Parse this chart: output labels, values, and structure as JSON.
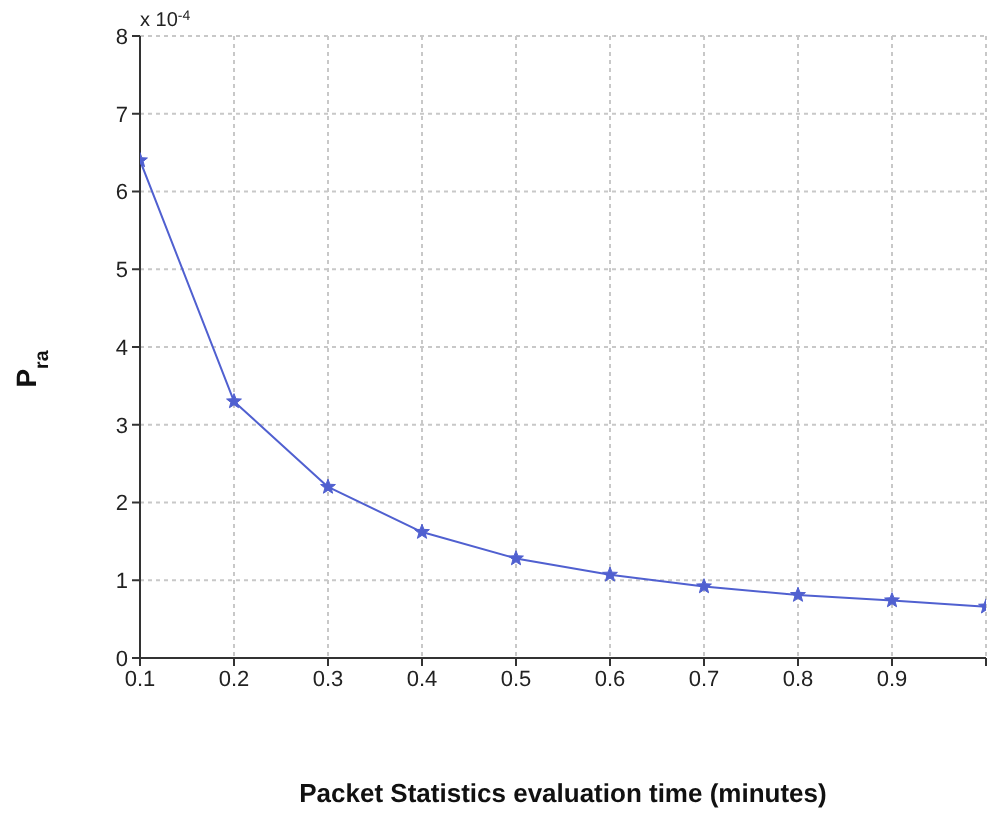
{
  "chart_data": {
    "type": "line",
    "xlabel": "Packet Statistics evaluation time (minutes)",
    "ylabel": "P$_{ra}$",
    "annotations": [
      "x 10$^{-4}$"
    ],
    "x": [
      0.1,
      0.2,
      0.3,
      0.4,
      0.5,
      0.6,
      0.7,
      0.8,
      0.9,
      1.0
    ],
    "series": [
      {
        "color": "#5060d0",
        "values": [
          6.4,
          3.3,
          2.2,
          1.62,
          1.28,
          1.07,
          0.92,
          0.81,
          0.74,
          0.66
        ]
      }
    ],
    "xlim": [
      0.1,
      1.0
    ],
    "xticks": [
      0.1,
      0.2,
      0.3,
      0.4,
      0.5,
      0.6,
      0.7,
      0.8,
      0.9,
      {
        "value": 1.0,
        "label": null
      }
    ],
    "ylim": [
      0,
      8
    ],
    "yticks": [
      0,
      1,
      2,
      3,
      4,
      5,
      6,
      7,
      8
    ],
    "grid": true,
    "marker": "star",
    "line_style": "solid"
  }
}
